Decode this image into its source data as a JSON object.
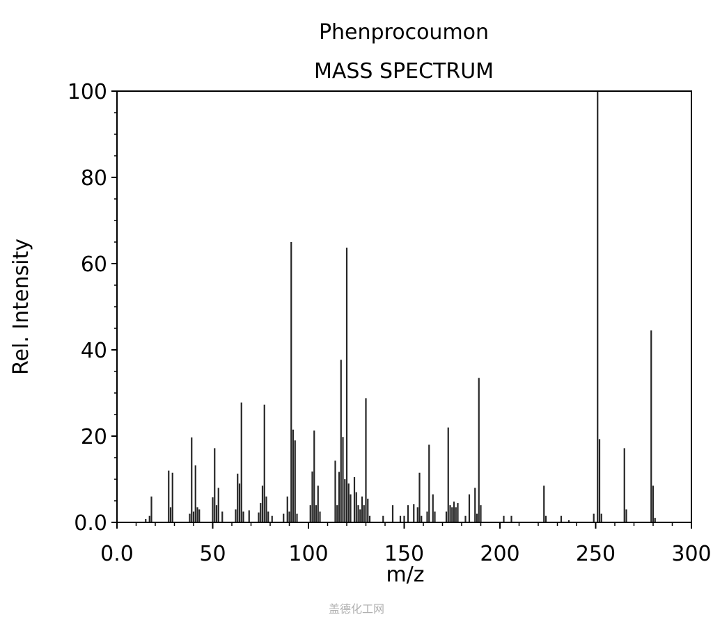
{
  "chart_data": {
    "type": "bar",
    "title": "Phenprocoumon",
    "subtitle": "MASS SPECTRUM",
    "xlabel": "m/z",
    "ylabel": "Rel. Intensity",
    "xlim": [
      0,
      300
    ],
    "ylim": [
      0,
      100
    ],
    "x_ticks": [
      "0.0",
      "50",
      "100",
      "150",
      "200",
      "250",
      "300"
    ],
    "y_ticks": [
      "0.0",
      "20",
      "40",
      "60",
      "80",
      "100"
    ],
    "grid": false,
    "bar_color": "#000000",
    "points": [
      {
        "x": 15,
        "y": 0.8
      },
      {
        "x": 17,
        "y": 1.5
      },
      {
        "x": 18,
        "y": 6
      },
      {
        "x": 27,
        "y": 12
      },
      {
        "x": 28,
        "y": 3.5
      },
      {
        "x": 29,
        "y": 11.5
      },
      {
        "x": 38,
        "y": 2
      },
      {
        "x": 39,
        "y": 19.7
      },
      {
        "x": 40,
        "y": 2.5
      },
      {
        "x": 41,
        "y": 13.2
      },
      {
        "x": 42,
        "y": 3.5
      },
      {
        "x": 43,
        "y": 3
      },
      {
        "x": 50,
        "y": 5.8
      },
      {
        "x": 51,
        "y": 17.2
      },
      {
        "x": 52,
        "y": 4
      },
      {
        "x": 53,
        "y": 8
      },
      {
        "x": 55,
        "y": 2.5
      },
      {
        "x": 62,
        "y": 3
      },
      {
        "x": 63,
        "y": 11.3
      },
      {
        "x": 64,
        "y": 9
      },
      {
        "x": 65,
        "y": 27.8
      },
      {
        "x": 66,
        "y": 2.5
      },
      {
        "x": 69,
        "y": 2.8
      },
      {
        "x": 74,
        "y": 2.3
      },
      {
        "x": 75,
        "y": 4.5
      },
      {
        "x": 76,
        "y": 8.5
      },
      {
        "x": 77,
        "y": 27.3
      },
      {
        "x": 78,
        "y": 6
      },
      {
        "x": 79,
        "y": 2.5
      },
      {
        "x": 81,
        "y": 1.5
      },
      {
        "x": 87,
        "y": 2
      },
      {
        "x": 89,
        "y": 6
      },
      {
        "x": 90,
        "y": 2.5
      },
      {
        "x": 91,
        "y": 65
      },
      {
        "x": 92,
        "y": 21.5
      },
      {
        "x": 93,
        "y": 19
      },
      {
        "x": 94,
        "y": 2
      },
      {
        "x": 101,
        "y": 4
      },
      {
        "x": 102,
        "y": 11.8
      },
      {
        "x": 103,
        "y": 21.3
      },
      {
        "x": 104,
        "y": 4
      },
      {
        "x": 105,
        "y": 8.5
      },
      {
        "x": 106,
        "y": 2.5
      },
      {
        "x": 114,
        "y": 14.3
      },
      {
        "x": 115,
        "y": 4
      },
      {
        "x": 116,
        "y": 11.7
      },
      {
        "x": 117,
        "y": 37.7
      },
      {
        "x": 118,
        "y": 19.8
      },
      {
        "x": 119,
        "y": 10
      },
      {
        "x": 120,
        "y": 63.7
      },
      {
        "x": 121,
        "y": 9
      },
      {
        "x": 122,
        "y": 6.5
      },
      {
        "x": 124,
        "y": 10.5
      },
      {
        "x": 125,
        "y": 7
      },
      {
        "x": 126,
        "y": 4
      },
      {
        "x": 127,
        "y": 3
      },
      {
        "x": 128,
        "y": 6
      },
      {
        "x": 129,
        "y": 4
      },
      {
        "x": 130,
        "y": 28.8
      },
      {
        "x": 131,
        "y": 5.5
      },
      {
        "x": 132,
        "y": 1.5
      },
      {
        "x": 139,
        "y": 1.5
      },
      {
        "x": 144,
        "y": 4
      },
      {
        "x": 148,
        "y": 1.5
      },
      {
        "x": 150,
        "y": 1.5
      },
      {
        "x": 152,
        "y": 4
      },
      {
        "x": 155,
        "y": 4.2
      },
      {
        "x": 157,
        "y": 3.5
      },
      {
        "x": 158,
        "y": 11.5
      },
      {
        "x": 159,
        "y": 1.5
      },
      {
        "x": 162,
        "y": 2.5
      },
      {
        "x": 163,
        "y": 18
      },
      {
        "x": 165,
        "y": 6.5
      },
      {
        "x": 166,
        "y": 2.5
      },
      {
        "x": 172,
        "y": 2.5
      },
      {
        "x": 173,
        "y": 22
      },
      {
        "x": 174,
        "y": 4
      },
      {
        "x": 175,
        "y": 3.5
      },
      {
        "x": 176,
        "y": 4.8
      },
      {
        "x": 177,
        "y": 3.5
      },
      {
        "x": 178,
        "y": 4.5
      },
      {
        "x": 182,
        "y": 1.5
      },
      {
        "x": 184,
        "y": 6.5
      },
      {
        "x": 187,
        "y": 8
      },
      {
        "x": 188,
        "y": 2
      },
      {
        "x": 189,
        "y": 33.5
      },
      {
        "x": 190,
        "y": 4
      },
      {
        "x": 202,
        "y": 1.5
      },
      {
        "x": 206,
        "y": 1.5
      },
      {
        "x": 223,
        "y": 8.5
      },
      {
        "x": 224,
        "y": 1.5
      },
      {
        "x": 232,
        "y": 1.5
      },
      {
        "x": 236,
        "y": 0.5
      },
      {
        "x": 249,
        "y": 2
      },
      {
        "x": 251,
        "y": 100
      },
      {
        "x": 252,
        "y": 19.3
      },
      {
        "x": 253,
        "y": 2
      },
      {
        "x": 265,
        "y": 17.2
      },
      {
        "x": 266,
        "y": 3
      },
      {
        "x": 279,
        "y": 44.5
      },
      {
        "x": 280,
        "y": 8.5
      },
      {
        "x": 281,
        "y": 1
      }
    ]
  },
  "watermark": "盖德化工网"
}
